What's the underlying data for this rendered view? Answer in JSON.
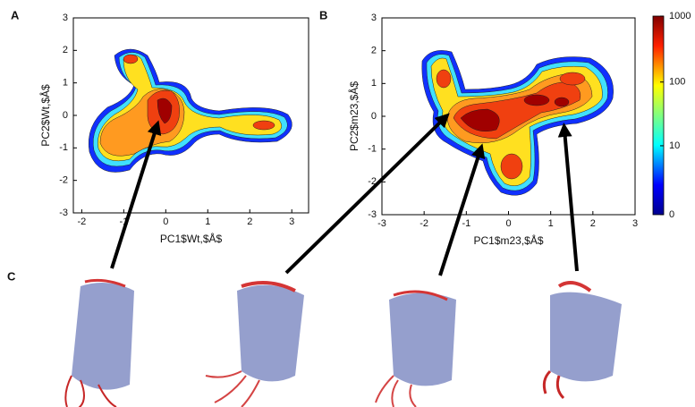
{
  "panel_c_label": "C",
  "chart_data": [
    {
      "type": "density",
      "panel_label": "A",
      "xlabel": "PC1$Wt,$Å$",
      "ylabel": "PC2$Wt,$Å$",
      "xlim": [
        -2.2,
        3.4
      ],
      "ylim": [
        -3,
        3
      ],
      "xticks": [
        -2,
        -1,
        0,
        1,
        2,
        3
      ],
      "yticks": [
        -3,
        -2,
        -1,
        0,
        1,
        2,
        3
      ]
    },
    {
      "type": "density",
      "panel_label": "B",
      "xlabel": "PC1$m23,$Å$",
      "ylabel": "PC2$m23,$Å$",
      "xlim": [
        -3,
        3
      ],
      "ylim": [
        -3,
        3
      ],
      "xticks": [
        -3,
        -2,
        -1,
        0,
        1,
        2,
        3
      ],
      "yticks": [
        -3,
        -2,
        -1,
        0,
        1,
        2,
        3
      ]
    },
    {
      "type": "colorbar",
      "scale": "log1p",
      "ylim": [
        0,
        1000
      ],
      "yticks": [
        0,
        10,
        100,
        1000
      ]
    }
  ]
}
